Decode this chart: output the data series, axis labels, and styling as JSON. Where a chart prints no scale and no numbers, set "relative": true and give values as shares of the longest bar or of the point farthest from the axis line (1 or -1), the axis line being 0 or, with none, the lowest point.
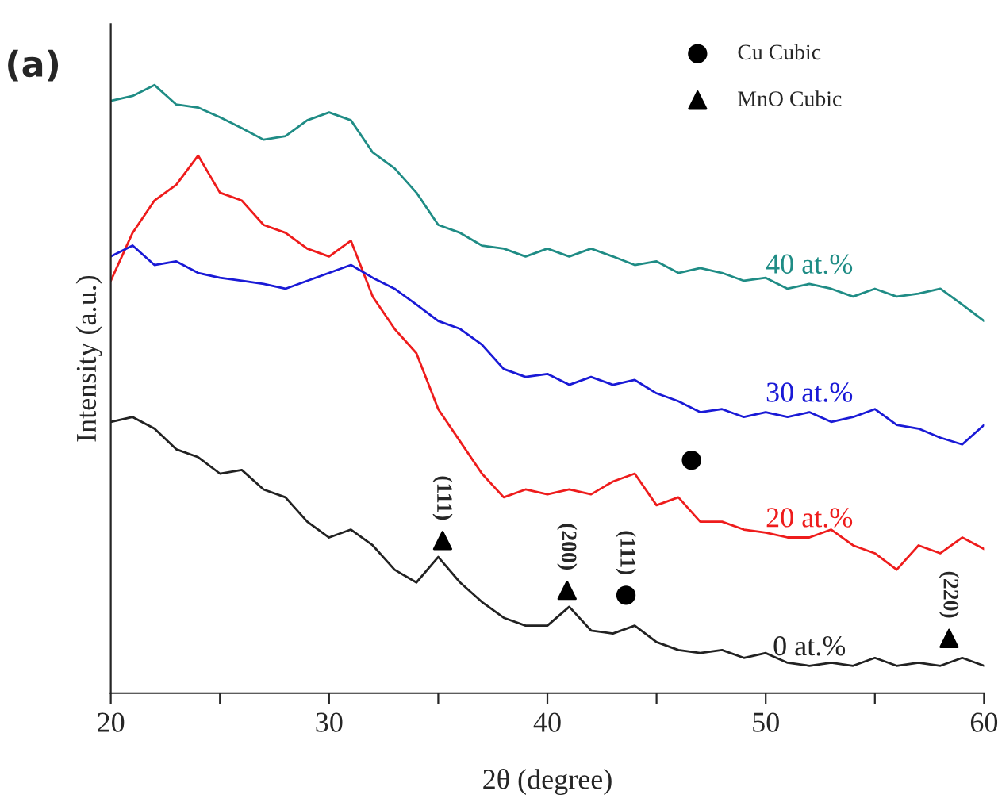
{
  "chart_data": {
    "type": "line",
    "relative": true,
    "xlabel": "2θ (degree)",
    "ylabel": "Intensity (a.u.)",
    "xlim": [
      20,
      60
    ],
    "xticks": [
      20,
      {
        "value": 25,
        "label": null
      },
      30,
      {
        "value": 35,
        "label": null
      },
      40,
      {
        "value": 45,
        "label": null
      },
      50,
      {
        "value": 55,
        "label": null
      },
      60
    ],
    "legend": "top right",
    "grid": false,
    "line_style": "solid",
    "annotations": [
      "(a)",
      {
        "text": "(111)",
        "x": 35.2,
        "y": 0.251
      },
      {
        "text": "(200)",
        "x": 40.9,
        "y": 0.169
      },
      {
        "text": "(111)",
        "x": 43.6,
        "y": 0.161
      },
      {
        "text": "(220)",
        "x": 58.4,
        "y": 0.09
      }
    ],
    "x": [
      20,
      21,
      22,
      23,
      24,
      25,
      26,
      27,
      28,
      29,
      30,
      31,
      32,
      33,
      34,
      35,
      36,
      37,
      38,
      39,
      40,
      41,
      42,
      43,
      44,
      45,
      46,
      47,
      48,
      49,
      50,
      51,
      52,
      53,
      54,
      55,
      56,
      57,
      58,
      59,
      60
    ],
    "series": [
      {
        "name": "0 at.%",
        "color": "#222222",
        "marker": "none",
        "values": [
          0.446,
          0.454,
          0.435,
          0.401,
          0.388,
          0.361,
          0.367,
          0.335,
          0.322,
          0.282,
          0.256,
          0.269,
          0.243,
          0.203,
          0.182,
          0.224,
          0.182,
          0.15,
          0.124,
          0.111,
          0.111,
          0.142,
          0.103,
          0.098,
          0.111,
          0.084,
          0.071,
          0.066,
          0.071,
          0.058,
          0.066,
          0.05,
          0.045,
          0.05,
          0.045,
          0.058,
          0.045,
          0.05,
          0.045,
          0.058,
          0.045
        ]
      },
      {
        "name": "20 at.%",
        "color": "#ee1c1c",
        "marker": "none",
        "values": [
          0.678,
          0.757,
          0.81,
          0.836,
          0.884,
          0.823,
          0.81,
          0.77,
          0.757,
          0.731,
          0.718,
          0.744,
          0.652,
          0.599,
          0.559,
          0.467,
          0.414,
          0.361,
          0.322,
          0.335,
          0.327,
          0.335,
          0.327,
          0.348,
          0.361,
          0.309,
          0.322,
          0.282,
          0.282,
          0.269,
          0.264,
          0.256,
          0.256,
          0.269,
          0.243,
          0.23,
          0.203,
          0.243,
          0.23,
          0.256,
          0.237
        ]
      },
      {
        "name": "30 at.%",
        "color": "#1a1ad6",
        "marker": "none",
        "values": [
          0.718,
          0.736,
          0.704,
          0.71,
          0.691,
          0.683,
          0.678,
          0.673,
          0.665,
          0.678,
          0.691,
          0.704,
          0.683,
          0.665,
          0.639,
          0.612,
          0.599,
          0.573,
          0.533,
          0.52,
          0.525,
          0.507,
          0.52,
          0.507,
          0.515,
          0.493,
          0.48,
          0.462,
          0.467,
          0.454,
          0.462,
          0.454,
          0.462,
          0.446,
          0.454,
          0.467,
          0.441,
          0.435,
          0.42,
          0.409,
          0.441
        ]
      },
      {
        "name": "40 at.%",
        "color": "#1f8c85",
        "marker": "none",
        "values": [
          0.974,
          0.982,
          1,
          0.968,
          0.963,
          0.947,
          0.929,
          0.91,
          0.916,
          0.942,
          0.955,
          0.942,
          0.889,
          0.863,
          0.823,
          0.77,
          0.757,
          0.736,
          0.731,
          0.718,
          0.731,
          0.718,
          0.731,
          0.718,
          0.704,
          0.71,
          0.691,
          0.699,
          0.691,
          0.678,
          0.683,
          0.665,
          0.673,
          0.665,
          0.652,
          0.665,
          0.652,
          0.657,
          0.665,
          0.639,
          0.612
        ]
      },
      {
        "name": "Cu Cubic",
        "type": "scatter",
        "color": "#000000",
        "marker": "circle",
        "x": [
          43.6,
          46.6
        ],
        "values": [
          0.161,
          0.383
        ]
      },
      {
        "name": "MnO Cubic",
        "type": "scatter",
        "color": "#000000",
        "marker": "triangle",
        "x": [
          35.2,
          40.9,
          58.4
        ],
        "values": [
          0.251,
          0.169,
          0.09
        ]
      }
    ]
  }
}
